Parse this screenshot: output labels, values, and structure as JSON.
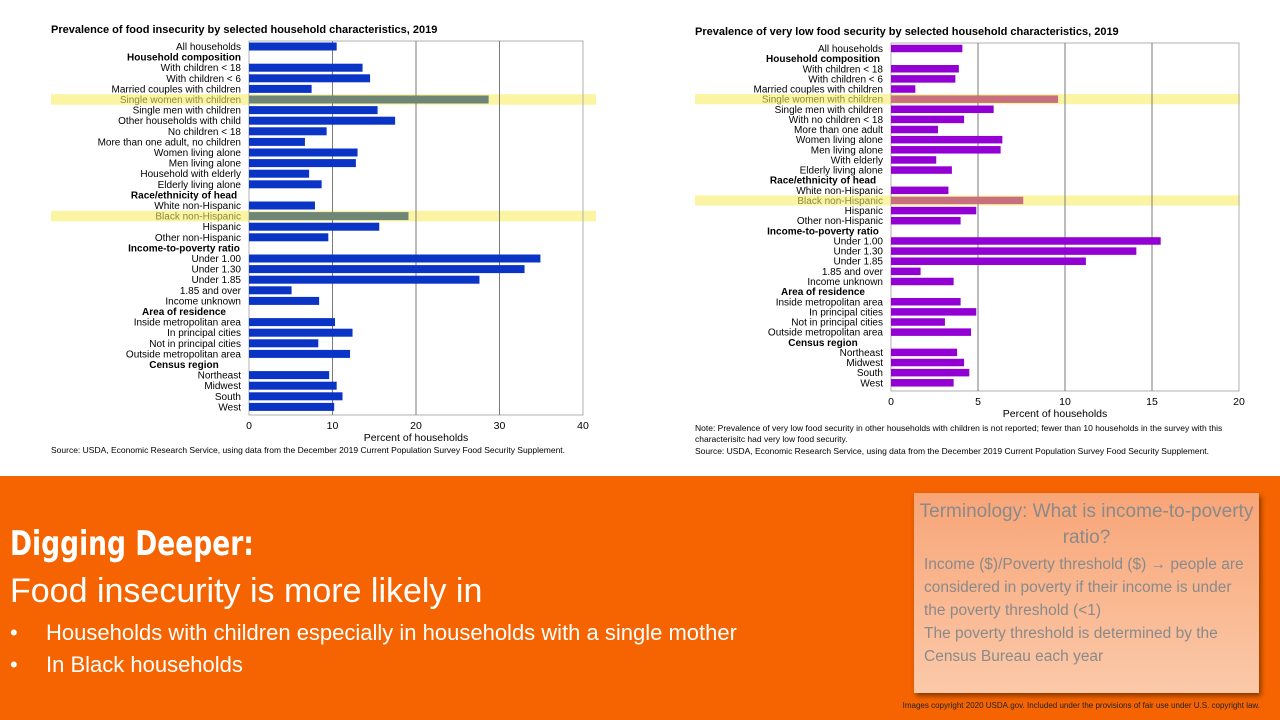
{
  "chart_data": [
    {
      "type": "bar",
      "orientation": "horizontal",
      "title": "Prevalence of food insecurity by selected household characteristics, 2019",
      "xlabel": "Percent of households",
      "xlim": [
        0,
        40
      ],
      "xticks": [
        0,
        10,
        20,
        30,
        40
      ],
      "grid": true,
      "bar_color": "#0a34c6",
      "highlight_bar_color": "#6f8575",
      "highlight_band_color": "#fbf5a3",
      "rows": [
        {
          "label": "All households",
          "value": 10.5
        },
        {
          "label": "Household composition",
          "header": true
        },
        {
          "label": "With children < 18",
          "value": 13.6
        },
        {
          "label": "With children < 6",
          "value": 14.5
        },
        {
          "label": "Married couples with children",
          "value": 7.5
        },
        {
          "label": "Single women with children",
          "value": 28.7,
          "highlight": true
        },
        {
          "label": "Single men with children",
          "value": 15.4
        },
        {
          "label": "Other households with child",
          "value": 17.5
        },
        {
          "label": "No children < 18",
          "value": 9.3
        },
        {
          "label": "More than one adult, no children",
          "value": 6.7
        },
        {
          "label": "Women living alone",
          "value": 13.0
        },
        {
          "label": "Men living alone",
          "value": 12.8
        },
        {
          "label": "Household with elderly",
          "value": 7.2
        },
        {
          "label": "Elderly living alone",
          "value": 8.7
        },
        {
          "label": "Race/ethnicity of head",
          "header": true
        },
        {
          "label": "White non-Hispanic",
          "value": 7.9
        },
        {
          "label": "Black non-Hispanic",
          "value": 19.1,
          "highlight": true
        },
        {
          "label": "Hispanic",
          "value": 15.6
        },
        {
          "label": "Other non-Hispanic",
          "value": 9.5
        },
        {
          "label": "Income-to-poverty ratio",
          "header": true
        },
        {
          "label": "Under 1.00",
          "value": 34.9
        },
        {
          "label": "Under 1.30",
          "value": 33.0
        },
        {
          "label": "Under 1.85",
          "value": 27.6
        },
        {
          "label": "1.85 and over",
          "value": 5.1
        },
        {
          "label": "Income unknown",
          "value": 8.4
        },
        {
          "label": "Area of residence",
          "header": true
        },
        {
          "label": "Inside metropolitan area",
          "value": 10.3
        },
        {
          "label": "In principal cities",
          "value": 12.4
        },
        {
          "label": "Not in principal cities",
          "value": 8.3
        },
        {
          "label": "Outside metropolitan area",
          "value": 12.1
        },
        {
          "label": "Census region",
          "header": true
        },
        {
          "label": "Northeast",
          "value": 9.6
        },
        {
          "label": "Midwest",
          "value": 10.5
        },
        {
          "label": "South",
          "value": 11.2
        },
        {
          "label": "West",
          "value": 10.2
        }
      ],
      "source": "Source: USDA, Economic Research Service, using data from the December 2019 Current Population Survey Food Security Supplement."
    },
    {
      "type": "bar",
      "orientation": "horizontal",
      "title": "Prevalence of very low food security by selected household characteristics, 2019",
      "xlabel": "Percent of households",
      "xlim": [
        0,
        20
      ],
      "xticks": [
        0,
        5,
        10,
        15,
        20
      ],
      "grid": true,
      "bar_color": "#9200d4",
      "highlight_bar_color": "#c8707e",
      "highlight_band_color": "#fbf5a3",
      "rows": [
        {
          "label": "All households",
          "value": 4.1
        },
        {
          "label": "Household composition",
          "header": true
        },
        {
          "label": "With children < 18",
          "value": 3.9
        },
        {
          "label": "With children < 6",
          "value": 3.7
        },
        {
          "label": "Married couples with children",
          "value": 1.4
        },
        {
          "label": "Single women with children",
          "value": 9.6,
          "highlight": true
        },
        {
          "label": "Single men with children",
          "value": 5.9
        },
        {
          "label": "With no children < 18",
          "value": 4.2
        },
        {
          "label": "More than one adult",
          "value": 2.7
        },
        {
          "label": "Women living alone",
          "value": 6.4
        },
        {
          "label": "Men living alone",
          "value": 6.3
        },
        {
          "label": "With elderly",
          "value": 2.6
        },
        {
          "label": "Elderly living alone",
          "value": 3.5
        },
        {
          "label": "Race/ethnicity of head",
          "header": true
        },
        {
          "label": "White non-Hispanic",
          "value": 3.3
        },
        {
          "label": "Black non-Hispanic",
          "value": 7.6,
          "highlight": true
        },
        {
          "label": "Hispanic",
          "value": 4.9
        },
        {
          "label": "Other non-Hispanic",
          "value": 4.0
        },
        {
          "label": "Income-to-poverty ratio",
          "header": true
        },
        {
          "label": "Under 1.00",
          "value": 15.5
        },
        {
          "label": "Under 1.30",
          "value": 14.1
        },
        {
          "label": "Under 1.85",
          "value": 11.2
        },
        {
          "label": "1.85 and over",
          "value": 1.7
        },
        {
          "label": "Income unknown",
          "value": 3.6
        },
        {
          "label": "Area of residence",
          "header": true
        },
        {
          "label": "Inside metropolitan area",
          "value": 4.0
        },
        {
          "label": "In principal cities",
          "value": 4.9
        },
        {
          "label": "Not in principal cities",
          "value": 3.1
        },
        {
          "label": "Outside metropolitan area",
          "value": 4.6
        },
        {
          "label": "Census region",
          "header": true
        },
        {
          "label": "Northeast",
          "value": 3.8
        },
        {
          "label": "Midwest",
          "value": 4.2
        },
        {
          "label": "South",
          "value": 4.5
        },
        {
          "label": "West",
          "value": 3.6
        }
      ],
      "note": "Note: Prevalence of very low food security in other households with children is not reported; fewer than 10 households in the survey with this characterisitc had very low food security.",
      "source": "Source: USDA, Economic Research Service, using data from the December 2019 Current Population Survey Food Security Supplement."
    }
  ],
  "slide": {
    "heading": "Digging Deeper:",
    "subheading": "Food insecurity is more likely in",
    "bullets": [
      "Households with children especially in households with a single mother",
      "In Black households"
    ],
    "bullet_glyph": "•",
    "terminology": {
      "title": "Terminology: What is income-to-poverty ratio?",
      "body_1": "Income ($)/Poverty threshold ($) → people are considered in poverty if their income is under the poverty threshold (<1)",
      "body_2": "The poverty threshold is determined by the Census Bureau each year"
    },
    "copyright": "Images copyright 2020 USDA.gov. Included under the provisions of fair use under U.S. copyright law.",
    "banner_color": "#f56400"
  }
}
